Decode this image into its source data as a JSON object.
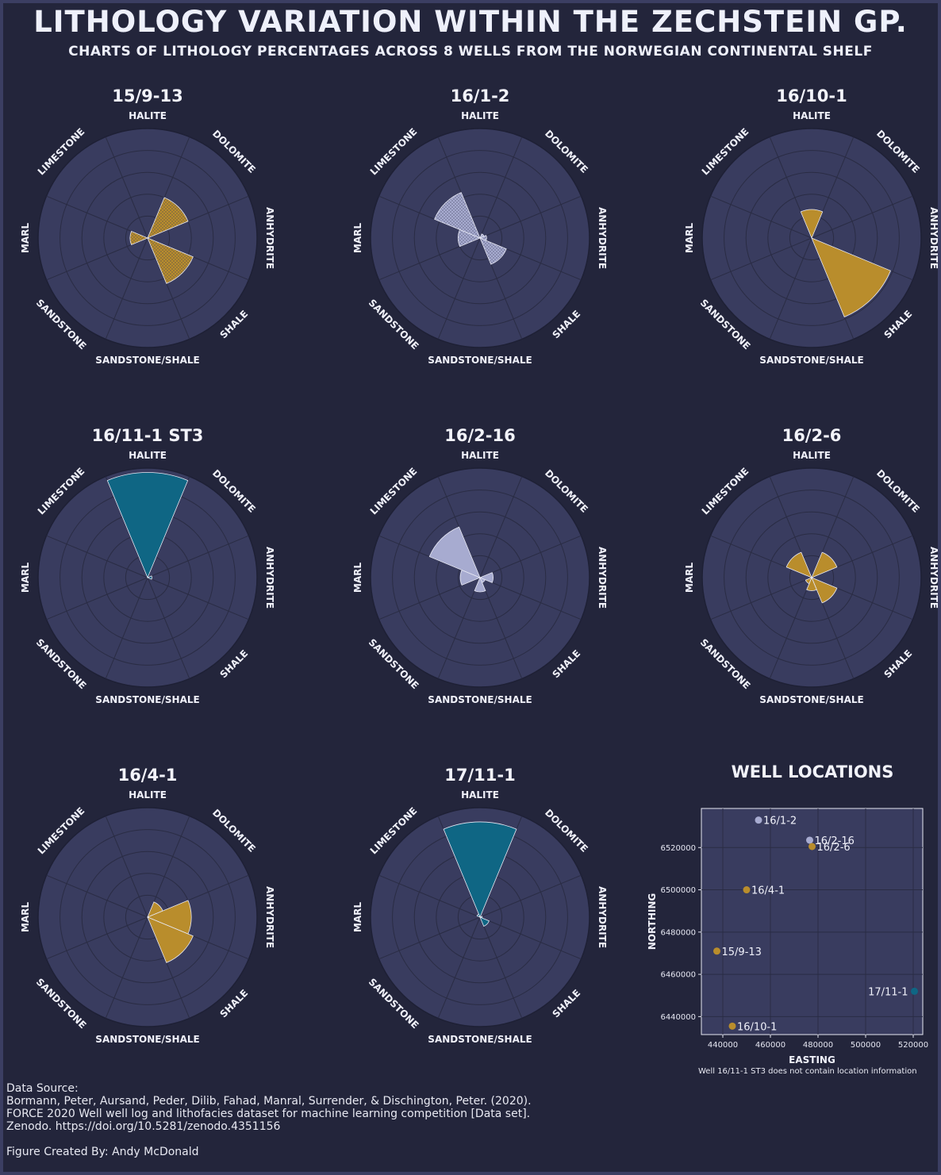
{
  "title": "LITHOLOGY VARIATION WITHIN THE ZECHSTEIN GP.",
  "subtitle": "CHARTS OF LITHOLOGY PERCENTAGES ACROSS 8 WELLS FROM THE NORWEGIAN CONTINENTAL SHELF",
  "colors": {
    "background": "#23253b",
    "plot_background": "#393c5f",
    "grid": "#2a2c44",
    "gold": "#b98d2c",
    "lavender": "#a7abd0",
    "teal": "#0f6684"
  },
  "chart_data": [
    {
      "type": "polar-bar",
      "title": "15/9-13",
      "categories": [
        "HALITE",
        "DOLOMITE",
        "ANHYDRITE",
        "SHALE",
        "SANDSTONE/SHALE",
        "SANDSTONE",
        "MARL",
        "LIMESTONE"
      ],
      "values": [
        0,
        40,
        0,
        45,
        0,
        0,
        16,
        0
      ],
      "color": "#b98d2c",
      "hatch": true,
      "rmax": 100,
      "grid": true
    },
    {
      "type": "polar-bar",
      "title": "16/1-2",
      "categories": [
        "HALITE",
        "DOLOMITE",
        "ANHYDRITE",
        "SHALE",
        "SANDSTONE/SHALE",
        "SANDSTONE",
        "MARL",
        "LIMESTONE"
      ],
      "values": [
        0,
        4,
        6,
        26,
        0,
        0,
        20,
        45
      ],
      "color": "#a7abd0",
      "hatch": true,
      "rmax": 100,
      "grid": true
    },
    {
      "type": "polar-bar",
      "title": "16/10-1",
      "categories": [
        "HALITE",
        "DOLOMITE",
        "ANHYDRITE",
        "SHALE",
        "SANDSTONE/SHALE",
        "SANDSTONE",
        "MARL",
        "LIMESTONE"
      ],
      "values": [
        26,
        0,
        0,
        78,
        0,
        0,
        0,
        0
      ],
      "color": "#b98d2c",
      "hatch": false,
      "rmax": 100,
      "grid": true
    },
    {
      "type": "polar-bar",
      "title": "16/11-1 ST3",
      "categories": [
        "HALITE",
        "DOLOMITE",
        "ANHYDRITE",
        "SHALE",
        "SANDSTONE/SHALE",
        "SANDSTONE",
        "MARL",
        "LIMESTONE"
      ],
      "values": [
        96,
        0,
        4,
        0,
        0,
        0,
        0,
        0
      ],
      "color": "#0f6684",
      "hatch": false,
      "rmax": 100,
      "grid": true
    },
    {
      "type": "polar-bar",
      "title": "16/2-16",
      "categories": [
        "HALITE",
        "DOLOMITE",
        "ANHYDRITE",
        "SHALE",
        "SANDSTONE/SHALE",
        "SANDSTONE",
        "MARL",
        "LIMESTONE"
      ],
      "values": [
        0,
        0,
        12,
        5,
        13,
        0,
        18,
        50
      ],
      "color": "#a7abd0",
      "hatch": false,
      "rmax": 100,
      "grid": true
    },
    {
      "type": "polar-bar",
      "title": "16/2-6",
      "categories": [
        "HALITE",
        "DOLOMITE",
        "ANHYDRITE",
        "SHALE",
        "SANDSTONE/SHALE",
        "SANDSTONE",
        "MARL",
        "LIMESTONE"
      ],
      "values": [
        0,
        25,
        0,
        25,
        12,
        6,
        0,
        25
      ],
      "color": "#b98d2c",
      "hatch": false,
      "rmax": 100,
      "grid": true
    },
    {
      "type": "polar-bar",
      "title": "16/4-1",
      "categories": [
        "HALITE",
        "DOLOMITE",
        "ANHYDRITE",
        "SHALE",
        "SANDSTONE/SHALE",
        "SANDSTONE",
        "MARL",
        "LIMESTONE"
      ],
      "values": [
        0,
        15,
        40,
        45,
        0,
        0,
        0,
        0
      ],
      "color": "#b98d2c",
      "hatch": false,
      "rmax": 100,
      "grid": true
    },
    {
      "type": "polar-bar",
      "title": "17/11-1",
      "categories": [
        "HALITE",
        "DOLOMITE",
        "ANHYDRITE",
        "SHALE",
        "SANDSTONE/SHALE",
        "SANDSTONE",
        "MARL",
        "LIMESTONE"
      ],
      "values": [
        87,
        0,
        2,
        9,
        0,
        0,
        0,
        3
      ],
      "color": "#0f6684",
      "hatch": false,
      "rmax": 100,
      "grid": true
    },
    {
      "type": "scatter",
      "title": "WELL LOCATIONS",
      "xlabel": "EASTING",
      "ylabel": "NORTHING",
      "xlim": [
        431000,
        524000
      ],
      "ylim": [
        6431500,
        6538500
      ],
      "xticks": [
        "440000",
        "460000",
        "480000",
        "500000",
        "520000"
      ],
      "yticks": [
        "6440000",
        "6460000",
        "6480000",
        "6500000",
        "6520000"
      ],
      "xtick_values": [
        440000,
        460000,
        480000,
        500000,
        520000
      ],
      "ytick_values": [
        6440000,
        6460000,
        6480000,
        6500000,
        6520000
      ],
      "grid": true,
      "points": [
        {
          "label": "16/1-2",
          "x": 455000,
          "y": 6533000,
          "color": "#a7abd0"
        },
        {
          "label": "16/2-16",
          "x": 476500,
          "y": 6523500,
          "color": "#a7abd0"
        },
        {
          "label": "16/2-6",
          "x": 477500,
          "y": 6520500,
          "color": "#b98d2c"
        },
        {
          "label": "16/4-1",
          "x": 450000,
          "y": 6500000,
          "color": "#b98d2c"
        },
        {
          "label": "15/9-13",
          "x": 437500,
          "y": 6471000,
          "color": "#b98d2c"
        },
        {
          "label": "17/11-1",
          "x": 520500,
          "y": 6452000,
          "color": "#0f6684"
        },
        {
          "label": "16/10-1",
          "x": 444000,
          "y": 6435500,
          "color": "#b98d2c"
        }
      ]
    }
  ],
  "map_note": "Well 16/11-1 ST3 does not contain location information",
  "source": {
    "heading": "Data Source:",
    "line1": "Bormann, Peter, Aursand, Peder, Dilib, Fahad, Manral, Surrender, & Dischington, Peter. (2020).",
    "line2": "FORCE 2020 Well well log and lithofacies dataset for machine learning competition [Data set].",
    "line3": "Zenodo. https://doi.org/10.5281/zenodo.4351156"
  },
  "credit": "Figure Created By: Andy McDonald"
}
